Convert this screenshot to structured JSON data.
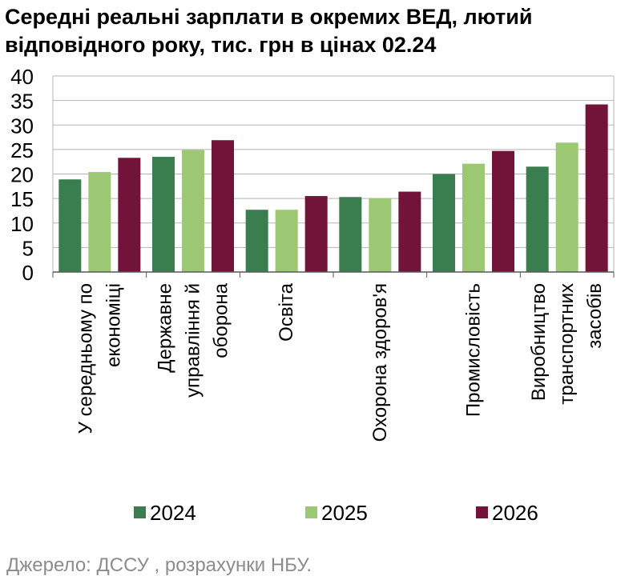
{
  "title_lines": [
    "Середні реальні зарплати в окремих ВЕД, лютий",
    "відповідного року, тис. грн в цінах 02.24"
  ],
  "source": "Джерело: ДССУ , розрахунки НБУ.",
  "colors": {
    "2024": "#3a7d4f",
    "2025": "#9cc874",
    "2026": "#72143a",
    "grid": "#b5b5b5",
    "axis": "#595959"
  },
  "chart_data": {
    "type": "bar",
    "title": "Середні реальні зарплати в окремих ВЕД, лютий відповідного року, тис. грн в цінах 02.24",
    "ylim": [
      0,
      40
    ],
    "yticks": [
      0,
      5,
      10,
      15,
      20,
      25,
      30,
      35,
      40
    ],
    "grid": true,
    "legend": "bottom",
    "categories": [
      [
        "У середньому по",
        "економіці"
      ],
      [
        "Державне",
        "управління й",
        "оборона"
      ],
      [
        "Освіта"
      ],
      [
        "Охорона здоров'я"
      ],
      [
        "Промисловість"
      ],
      [
        "Виробництво",
        "транспортних",
        "засобів"
      ]
    ],
    "series": [
      {
        "name": "2024",
        "values": [
          18.9,
          23.5,
          12.7,
          15.3,
          20.0,
          21.5
        ]
      },
      {
        "name": "2025",
        "values": [
          20.4,
          24.9,
          12.7,
          15.1,
          22.1,
          26.4
        ]
      },
      {
        "name": "2026",
        "values": [
          23.3,
          26.9,
          15.5,
          16.4,
          24.7,
          34.2
        ]
      }
    ]
  }
}
